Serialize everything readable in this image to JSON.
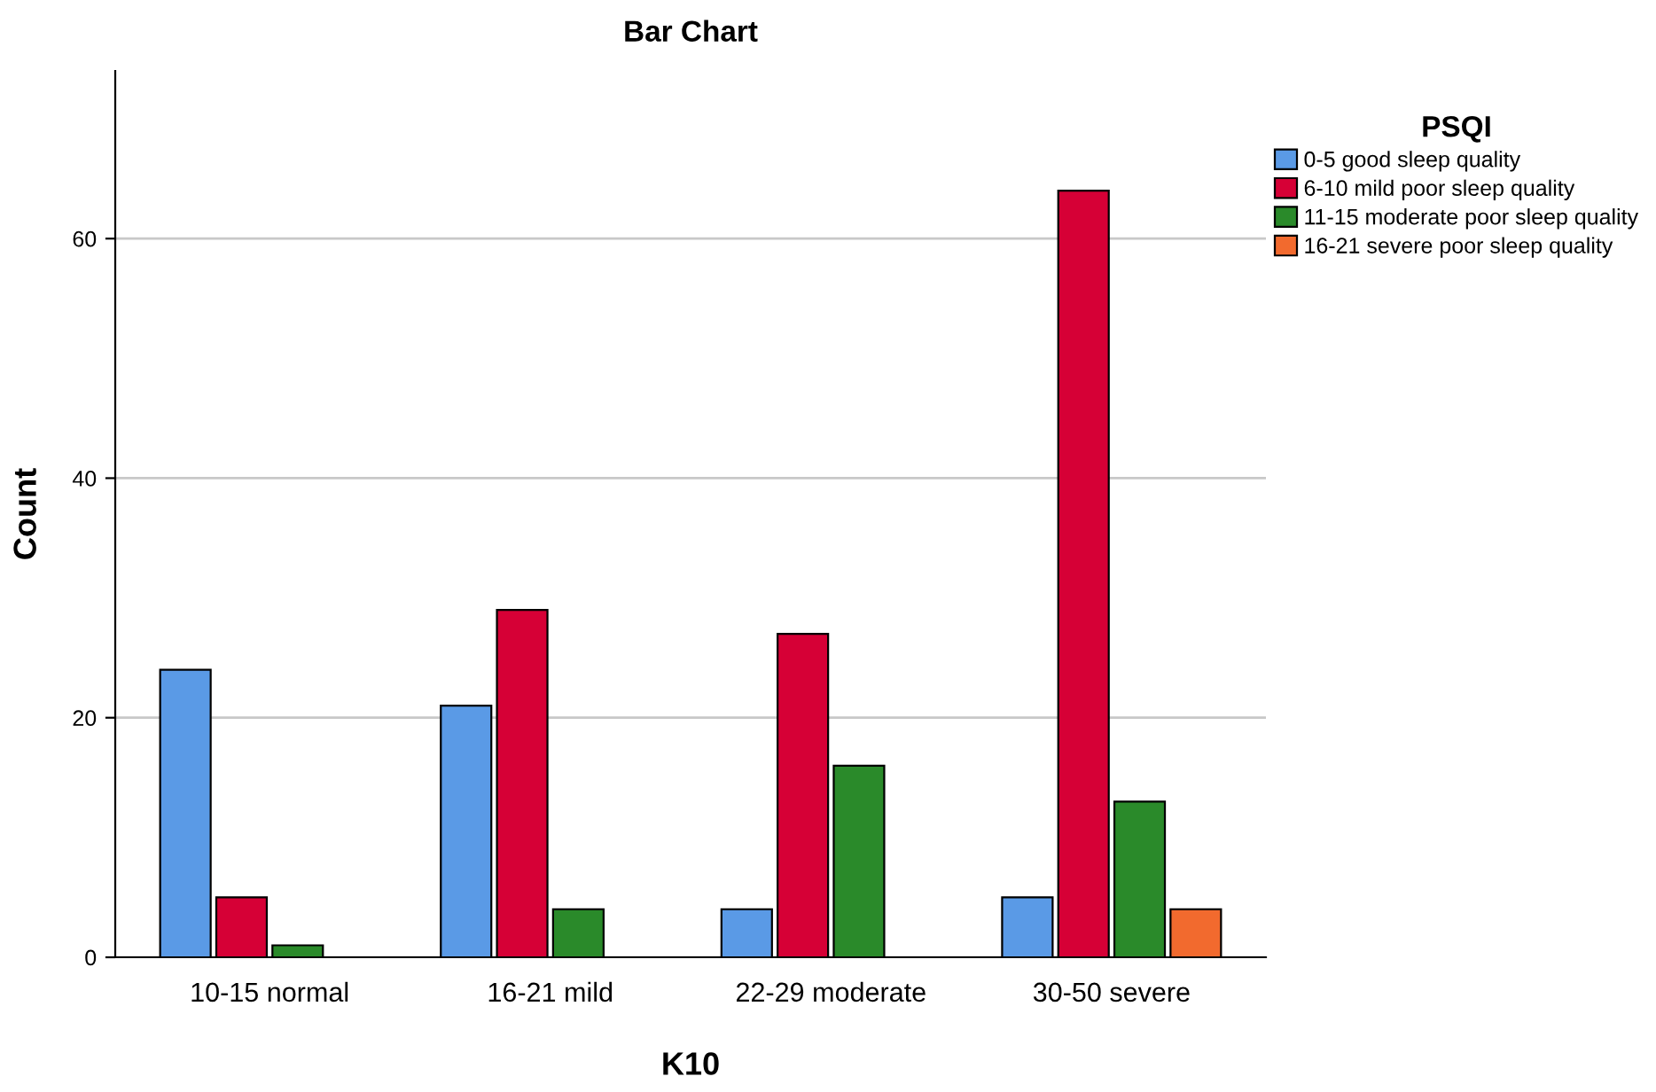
{
  "chart_data": {
    "type": "bar",
    "title": "Bar Chart",
    "xlabel": "K10",
    "ylabel": "Count",
    "legend_title": "PSQI",
    "categories": [
      "10-15 normal",
      "16-21 mild",
      "22-29 moderate",
      "30-50 severe"
    ],
    "series": [
      {
        "name": "0-5 good sleep quality",
        "color": "#5a9ae6",
        "values": [
          24,
          21,
          4,
          5
        ]
      },
      {
        "name": "6-10 mild poor sleep quality",
        "color": "#d60036",
        "values": [
          5,
          29,
          27,
          64
        ]
      },
      {
        "name": "11-15 moderate poor sleep quality",
        "color": "#2a8a2a",
        "values": [
          1,
          4,
          16,
          13
        ]
      },
      {
        "name": "16-21 severe poor sleep quality",
        "color": "#f26a2e",
        "values": [
          null,
          null,
          null,
          4
        ]
      }
    ],
    "ylim": [
      0,
      74
    ],
    "yticks": [
      0,
      20,
      40,
      60
    ],
    "grid": "y",
    "legend": "top right"
  }
}
